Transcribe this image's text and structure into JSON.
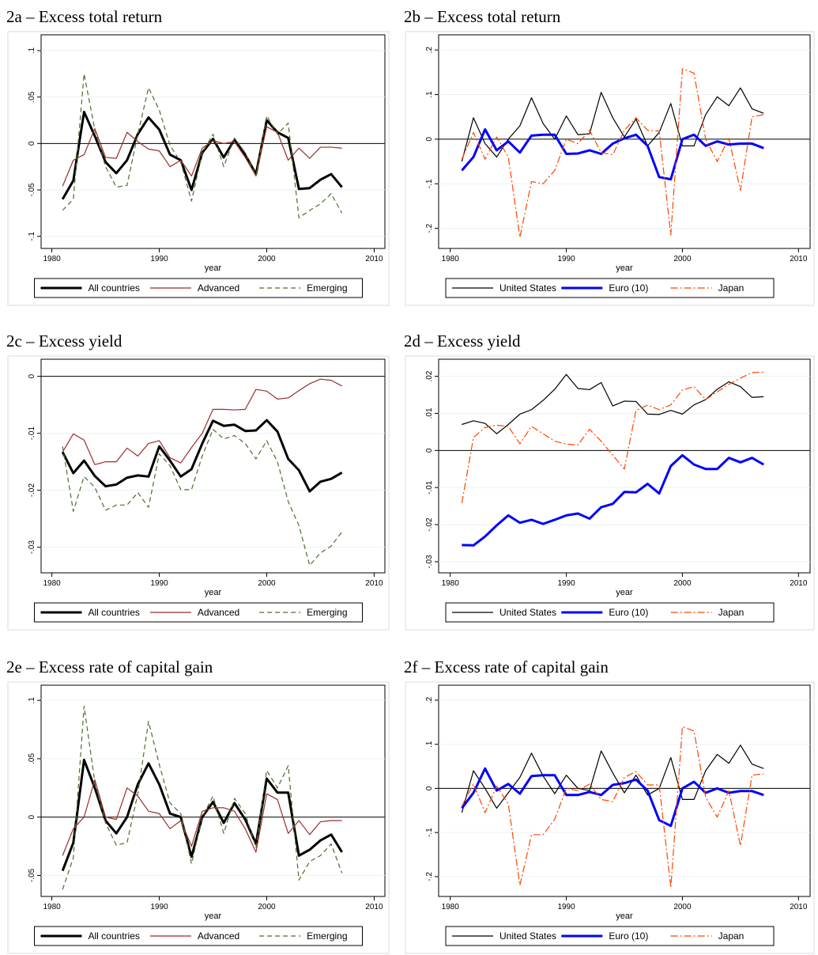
{
  "chart_data": [
    {
      "type": "line",
      "title": "2a – Excess total return",
      "x_label": "year",
      "x": [
        1981,
        1982,
        1983,
        1984,
        1985,
        1986,
        1987,
        1988,
        1989,
        1990,
        1991,
        1992,
        1993,
        1994,
        1995,
        1996,
        1997,
        1998,
        1999,
        2000,
        2001,
        2002,
        2003,
        2004,
        2005,
        2006,
        2007
      ],
      "xlim": [
        1979,
        2011
      ],
      "xticks": [
        1980,
        1990,
        2000,
        2010
      ],
      "ylim": [
        -0.113,
        0.117
      ],
      "yticks": [
        {
          "value": -0.1,
          "label": "-.1"
        },
        {
          "value": -0.05,
          "label": "-.05"
        },
        0,
        {
          "value": 0.05,
          "label": ".05"
        },
        {
          "value": 0.1,
          "label": ".1"
        }
      ],
      "grid": true,
      "refline": 0,
      "legend": "bottom",
      "series": [
        {
          "name": "All countries",
          "color": "#000000",
          "width": 3,
          "style": "solid",
          "values": [
            -0.06,
            -0.04,
            0.034,
            0.008,
            -0.02,
            -0.032,
            -0.018,
            0.01,
            0.028,
            0.015,
            -0.012,
            -0.018,
            -0.05,
            -0.01,
            0.005,
            -0.015,
            0.004,
            -0.012,
            -0.033,
            0.025,
            0.012,
            0.006,
            -0.049,
            -0.048,
            -0.039,
            -0.033,
            -0.047
          ]
        },
        {
          "name": "Advanced",
          "color": "#9b2d2d",
          "width": 1.2,
          "style": "solid",
          "values": [
            -0.046,
            -0.018,
            -0.012,
            0.016,
            -0.015,
            -0.016,
            0.012,
            0.002,
            -0.006,
            -0.008,
            -0.025,
            -0.018,
            -0.035,
            -0.005,
            0.003,
            0.0,
            0.002,
            -0.015,
            -0.035,
            0.018,
            0.012,
            -0.018,
            -0.005,
            -0.016,
            -0.004,
            -0.004,
            -0.005
          ]
        },
        {
          "name": "Emerging",
          "color": "#4b6e2a",
          "width": 1.2,
          "style": "dash",
          "values": [
            -0.072,
            -0.06,
            0.075,
            0.015,
            -0.025,
            -0.047,
            -0.045,
            0.01,
            0.06,
            0.036,
            -0.002,
            -0.02,
            -0.062,
            -0.01,
            0.01,
            -0.025,
            0.006,
            -0.01,
            -0.035,
            0.03,
            0.01,
            0.022,
            -0.08,
            -0.072,
            -0.065,
            -0.054,
            -0.075
          ]
        }
      ]
    },
    {
      "type": "line",
      "title": "2b – Excess total return",
      "x_label": "year",
      "x": [
        1981,
        1982,
        1983,
        1984,
        1985,
        1986,
        1987,
        1988,
        1989,
        1990,
        1991,
        1992,
        1993,
        1994,
        1995,
        1996,
        1997,
        1998,
        1999,
        2000,
        2001,
        2002,
        2003,
        2004,
        2005,
        2006,
        2007
      ],
      "xlim": [
        1979,
        2011
      ],
      "xticks": [
        1980,
        1990,
        2000,
        2010
      ],
      "ylim": [
        -0.245,
        0.234
      ],
      "yticks": [
        {
          "value": -0.2,
          "label": "-.2"
        },
        {
          "value": -0.1,
          "label": "-.1"
        },
        0,
        {
          "value": 0.1,
          "label": ".1"
        },
        {
          "value": 0.2,
          "label": ".2"
        }
      ],
      "grid": true,
      "refline": 0,
      "legend": "bottom",
      "series": [
        {
          "name": "United States",
          "color": "#000000",
          "width": 1.2,
          "style": "solid",
          "values": [
            -0.05,
            0.048,
            -0.01,
            -0.04,
            0.0,
            0.03,
            0.093,
            0.035,
            0.0,
            0.052,
            0.01,
            0.012,
            0.105,
            0.048,
            0.005,
            0.045,
            -0.015,
            0.015,
            0.08,
            -0.015,
            -0.015,
            0.055,
            0.095,
            0.075,
            0.115,
            0.068,
            0.058
          ]
        },
        {
          "name": "Euro (10)",
          "color": "#0000ff",
          "width": 3,
          "style": "solid",
          "values": [
            -0.07,
            -0.04,
            0.022,
            -0.025,
            -0.005,
            -0.03,
            0.008,
            0.01,
            0.01,
            -0.033,
            -0.032,
            -0.025,
            -0.033,
            -0.01,
            0.002,
            0.01,
            -0.015,
            -0.085,
            -0.09,
            0.0,
            0.01,
            -0.015,
            -0.005,
            -0.012,
            -0.01,
            -0.01,
            -0.02
          ]
        },
        {
          "name": "Japan",
          "color": "#ff4500",
          "width": 1.2,
          "style": "dashdot",
          "values": [
            -0.045,
            0.015,
            -0.045,
            0.005,
            -0.04,
            -0.22,
            -0.095,
            -0.1,
            -0.07,
            0.0,
            -0.01,
            0.02,
            -0.03,
            -0.035,
            0.02,
            0.048,
            0.02,
            0.018,
            -0.215,
            0.158,
            0.148,
            0.0,
            -0.05,
            0.002,
            -0.115,
            0.05,
            0.055
          ]
        }
      ]
    },
    {
      "type": "line",
      "title": "2c – Excess yield",
      "x_label": "year",
      "x": [
        1981,
        1982,
        1983,
        1984,
        1985,
        1986,
        1987,
        1988,
        1989,
        1990,
        1991,
        1992,
        1993,
        1994,
        1995,
        1996,
        1997,
        1998,
        1999,
        2000,
        2001,
        2002,
        2003,
        2004,
        2005,
        2006,
        2007
      ],
      "xlim": [
        1979,
        2011
      ],
      "xticks": [
        1980,
        1990,
        2000,
        2010
      ],
      "ylim": [
        -0.0345,
        0.003
      ],
      "yticks": [
        {
          "value": -0.03,
          "label": "-.03"
        },
        {
          "value": -0.02,
          "label": "-.02"
        },
        {
          "value": -0.01,
          "label": "-.01"
        },
        0
      ],
      "grid": true,
      "refline": 0,
      "legend": "bottom",
      "series": [
        {
          "name": "All countries",
          "color": "#000000",
          "width": 3,
          "style": "solid",
          "values": [
            -0.0133,
            -0.017,
            -0.0148,
            -0.0175,
            -0.0193,
            -0.019,
            -0.0178,
            -0.0174,
            -0.0176,
            -0.0123,
            -0.0148,
            -0.0176,
            -0.0163,
            -0.0118,
            -0.0078,
            -0.0087,
            -0.0085,
            -0.0096,
            -0.0095,
            -0.0077,
            -0.0097,
            -0.0145,
            -0.0165,
            -0.0202,
            -0.0185,
            -0.018,
            -0.0169
          ]
        },
        {
          "name": "Advanced",
          "color": "#9b2d2d",
          "width": 1.2,
          "style": "solid",
          "values": [
            -0.0133,
            -0.0101,
            -0.0112,
            -0.0155,
            -0.015,
            -0.015,
            -0.0126,
            -0.014,
            -0.0118,
            -0.0113,
            -0.0143,
            -0.0152,
            -0.0125,
            -0.01,
            -0.0058,
            -0.0058,
            -0.0059,
            -0.0058,
            -0.0023,
            -0.0026,
            -0.004,
            -0.0038,
            -0.0025,
            -0.0013,
            -0.0005,
            -0.0007,
            -0.0017
          ]
        },
        {
          "name": "Emerging",
          "color": "#4b6e2a",
          "width": 1.2,
          "style": "dash",
          "values": [
            -0.0123,
            -0.0237,
            -0.0176,
            -0.0195,
            -0.0235,
            -0.0226,
            -0.0226,
            -0.0204,
            -0.023,
            -0.0136,
            -0.0157,
            -0.0199,
            -0.0199,
            -0.014,
            -0.0093,
            -0.011,
            -0.0104,
            -0.0118,
            -0.0145,
            -0.0113,
            -0.015,
            -0.022,
            -0.0262,
            -0.0332,
            -0.031,
            -0.0298,
            -0.0273
          ]
        }
      ]
    },
    {
      "type": "line",
      "title": "2d – Excess yield",
      "x_label": "year",
      "x": [
        1981,
        1982,
        1983,
        1984,
        1985,
        1986,
        1987,
        1988,
        1989,
        1990,
        1991,
        1992,
        1993,
        1994,
        1995,
        1996,
        1997,
        1998,
        1999,
        2000,
        2001,
        2002,
        2003,
        2004,
        2005,
        2006,
        2007
      ],
      "xlim": [
        1979,
        2011
      ],
      "xticks": [
        1980,
        1990,
        2000,
        2010
      ],
      "ylim": [
        -0.033,
        0.0246
      ],
      "yticks": [
        {
          "value": -0.03,
          "label": "-.03"
        },
        {
          "value": -0.02,
          "label": "-.02"
        },
        {
          "value": -0.01,
          "label": "-.01"
        },
        0,
        {
          "value": 0.01,
          "label": ".01"
        },
        {
          "value": 0.02,
          "label": ".02"
        }
      ],
      "grid": true,
      "refline": 0,
      "legend": "bottom",
      "series": [
        {
          "name": "United States",
          "color": "#000000",
          "width": 1.2,
          "style": "solid",
          "values": [
            0.007,
            0.008,
            0.0073,
            0.0045,
            0.007,
            0.0098,
            0.011,
            0.0135,
            0.0165,
            0.0205,
            0.0167,
            0.0164,
            0.0183,
            0.012,
            0.0133,
            0.0132,
            0.0098,
            0.0097,
            0.0108,
            0.0098,
            0.0123,
            0.0137,
            0.0165,
            0.0185,
            0.0172,
            0.0143,
            0.0145
          ]
        },
        {
          "name": "Euro (10)",
          "color": "#0000ff",
          "width": 3,
          "style": "solid",
          "values": [
            -0.0255,
            -0.0256,
            -0.0232,
            -0.0202,
            -0.0175,
            -0.0195,
            -0.0187,
            -0.0198,
            -0.0187,
            -0.0175,
            -0.017,
            -0.0184,
            -0.0153,
            -0.0144,
            -0.0112,
            -0.0113,
            -0.009,
            -0.0116,
            -0.0042,
            -0.0013,
            -0.0038,
            -0.005,
            -0.005,
            -0.002,
            -0.0032,
            -0.002,
            -0.0038
          ]
        },
        {
          "name": "Japan",
          "color": "#ff4500",
          "width": 1.2,
          "style": "dashdot",
          "values": [
            -0.0142,
            0.0035,
            0.0062,
            0.0068,
            0.0065,
            0.0018,
            0.0065,
            0.0045,
            0.0025,
            0.0017,
            0.0015,
            0.0057,
            0.0025,
            -0.0013,
            -0.005,
            0.0108,
            0.0122,
            0.011,
            0.0123,
            0.0163,
            0.0172,
            0.0137,
            0.0158,
            0.0178,
            0.0195,
            0.021,
            0.0211
          ]
        }
      ]
    },
    {
      "type": "line",
      "title": "2e – Excess rate of capital gain",
      "x_label": "year",
      "x": [
        1981,
        1982,
        1983,
        1984,
        1985,
        1986,
        1987,
        1988,
        1989,
        1990,
        1991,
        1992,
        1993,
        1994,
        1995,
        1996,
        1997,
        1998,
        1999,
        2000,
        2001,
        2002,
        2003,
        2004,
        2005,
        2006,
        2007
      ],
      "xlim": [
        1979,
        2011
      ],
      "xticks": [
        1980,
        1990,
        2000,
        2010
      ],
      "ylim": [
        -0.068,
        0.113
      ],
      "yticks": [
        {
          "value": -0.05,
          "label": "-.05"
        },
        0,
        {
          "value": 0.05,
          "label": ".05"
        },
        {
          "value": 0.1,
          "label": ".1"
        }
      ],
      "grid": true,
      "refline": 0,
      "legend": "bottom",
      "series": [
        {
          "name": "All countries",
          "color": "#000000",
          "width": 3,
          "style": "solid",
          "values": [
            -0.046,
            -0.022,
            0.049,
            0.025,
            -0.003,
            -0.014,
            0.0,
            0.028,
            0.046,
            0.028,
            0.003,
            0.0,
            -0.034,
            0.0,
            0.013,
            -0.005,
            0.012,
            -0.002,
            -0.023,
            0.033,
            0.021,
            0.021,
            -0.033,
            -0.028,
            -0.02,
            -0.015,
            -0.03
          ]
        },
        {
          "name": "Advanced",
          "color": "#9b2d2d",
          "width": 1.2,
          "style": "solid",
          "values": [
            -0.033,
            -0.01,
            0.0,
            0.032,
            0.0,
            -0.002,
            0.025,
            0.018,
            0.005,
            0.003,
            -0.01,
            -0.003,
            -0.025,
            0.005,
            0.008,
            0.008,
            0.005,
            -0.01,
            -0.03,
            0.02,
            0.015,
            -0.014,
            -0.003,
            -0.015,
            -0.004,
            -0.003,
            -0.003
          ]
        },
        {
          "name": "Emerging",
          "color": "#4b6e2a",
          "width": 1.2,
          "style": "dash",
          "values": [
            -0.062,
            -0.035,
            0.095,
            0.03,
            -0.005,
            -0.024,
            -0.022,
            0.02,
            0.082,
            0.045,
            0.012,
            0.003,
            -0.04,
            0.0,
            0.018,
            -0.014,
            0.016,
            0.003,
            -0.026,
            0.04,
            0.025,
            0.044,
            -0.054,
            -0.038,
            -0.033,
            -0.023,
            -0.048
          ]
        }
      ]
    },
    {
      "type": "line",
      "title": "2f – Excess rate of capital gain",
      "x_label": "year",
      "x": [
        1981,
        1982,
        1983,
        1984,
        1985,
        1986,
        1987,
        1988,
        1989,
        1990,
        1991,
        1992,
        1993,
        1994,
        1995,
        1996,
        1997,
        1998,
        1999,
        2000,
        2001,
        2002,
        2003,
        2004,
        2005,
        2006,
        2007
      ],
      "xlim": [
        1979,
        2011
      ],
      "xticks": [
        1980,
        1990,
        2000,
        2010
      ],
      "ylim": [
        -0.245,
        0.234
      ],
      "yticks": [
        {
          "value": -0.2,
          "label": "-.2"
        },
        {
          "value": -0.1,
          "label": "-.1"
        },
        0,
        {
          "value": 0.1,
          "label": ".1"
        },
        {
          "value": 0.2,
          "label": ".2"
        }
      ],
      "grid": true,
      "refline": 0,
      "legend": "bottom",
      "series": [
        {
          "name": "United States",
          "color": "#000000",
          "width": 1.2,
          "style": "solid",
          "values": [
            -0.055,
            0.04,
            0.0,
            -0.045,
            -0.01,
            0.025,
            0.08,
            0.028,
            -0.012,
            0.03,
            0.0,
            -0.005,
            0.085,
            0.035,
            -0.01,
            0.03,
            -0.015,
            0.0,
            0.07,
            -0.025,
            -0.025,
            0.04,
            0.077,
            0.057,
            0.098,
            0.055,
            0.045
          ]
        },
        {
          "name": "Euro (10)",
          "color": "#0000ff",
          "width": 3,
          "style": "solid",
          "values": [
            -0.045,
            -0.01,
            0.045,
            -0.005,
            0.01,
            -0.012,
            0.028,
            0.03,
            0.03,
            -0.015,
            -0.015,
            -0.008,
            -0.015,
            0.008,
            0.012,
            0.02,
            -0.005,
            -0.072,
            -0.085,
            0.0,
            0.015,
            -0.01,
            0.0,
            -0.01,
            -0.006,
            -0.006,
            -0.015
          ]
        },
        {
          "name": "Japan",
          "color": "#ff4500",
          "width": 1.2,
          "style": "dashdot",
          "values": [
            -0.04,
            0.01,
            -0.055,
            0.005,
            -0.035,
            -0.22,
            -0.105,
            -0.105,
            -0.07,
            0.0,
            -0.005,
            0.01,
            -0.025,
            -0.03,
            0.025,
            0.038,
            0.008,
            0.008,
            -0.225,
            0.14,
            0.13,
            -0.02,
            -0.065,
            -0.005,
            -0.13,
            0.03,
            0.033
          ]
        }
      ]
    }
  ]
}
